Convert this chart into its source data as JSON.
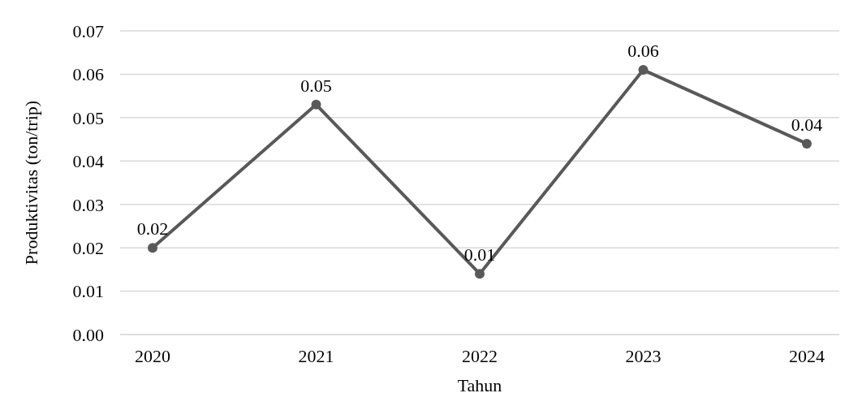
{
  "chart_data": {
    "type": "line",
    "xlabel": "Tahun",
    "ylabel": "Produktivitas (ton/trip)",
    "categories": [
      "2020",
      "2021",
      "2022",
      "2023",
      "2024"
    ],
    "series": [
      {
        "color": "#595959",
        "values": [
          0.02,
          0.053,
          0.014,
          0.061,
          0.044
        ],
        "value_labels": [
          "0.02",
          "0.05",
          "0.01",
          "0.06",
          "0.04"
        ]
      }
    ],
    "ylim": [
      0,
      0.07
    ],
    "yticks": [
      {
        "value": 0,
        "label": "0.00"
      },
      {
        "value": 0.01,
        "label": "0.01"
      },
      {
        "value": 0.02,
        "label": "0.02"
      },
      {
        "value": 0.03,
        "label": "0.03"
      },
      {
        "value": 0.04,
        "label": "0.04"
      },
      {
        "value": 0.05,
        "label": "0.05"
      },
      {
        "value": 0.06,
        "label": "0.06"
      },
      {
        "value": 0.07,
        "label": "0.07"
      }
    ],
    "grid": "y",
    "marker": "circle",
    "line_style": "solid"
  }
}
